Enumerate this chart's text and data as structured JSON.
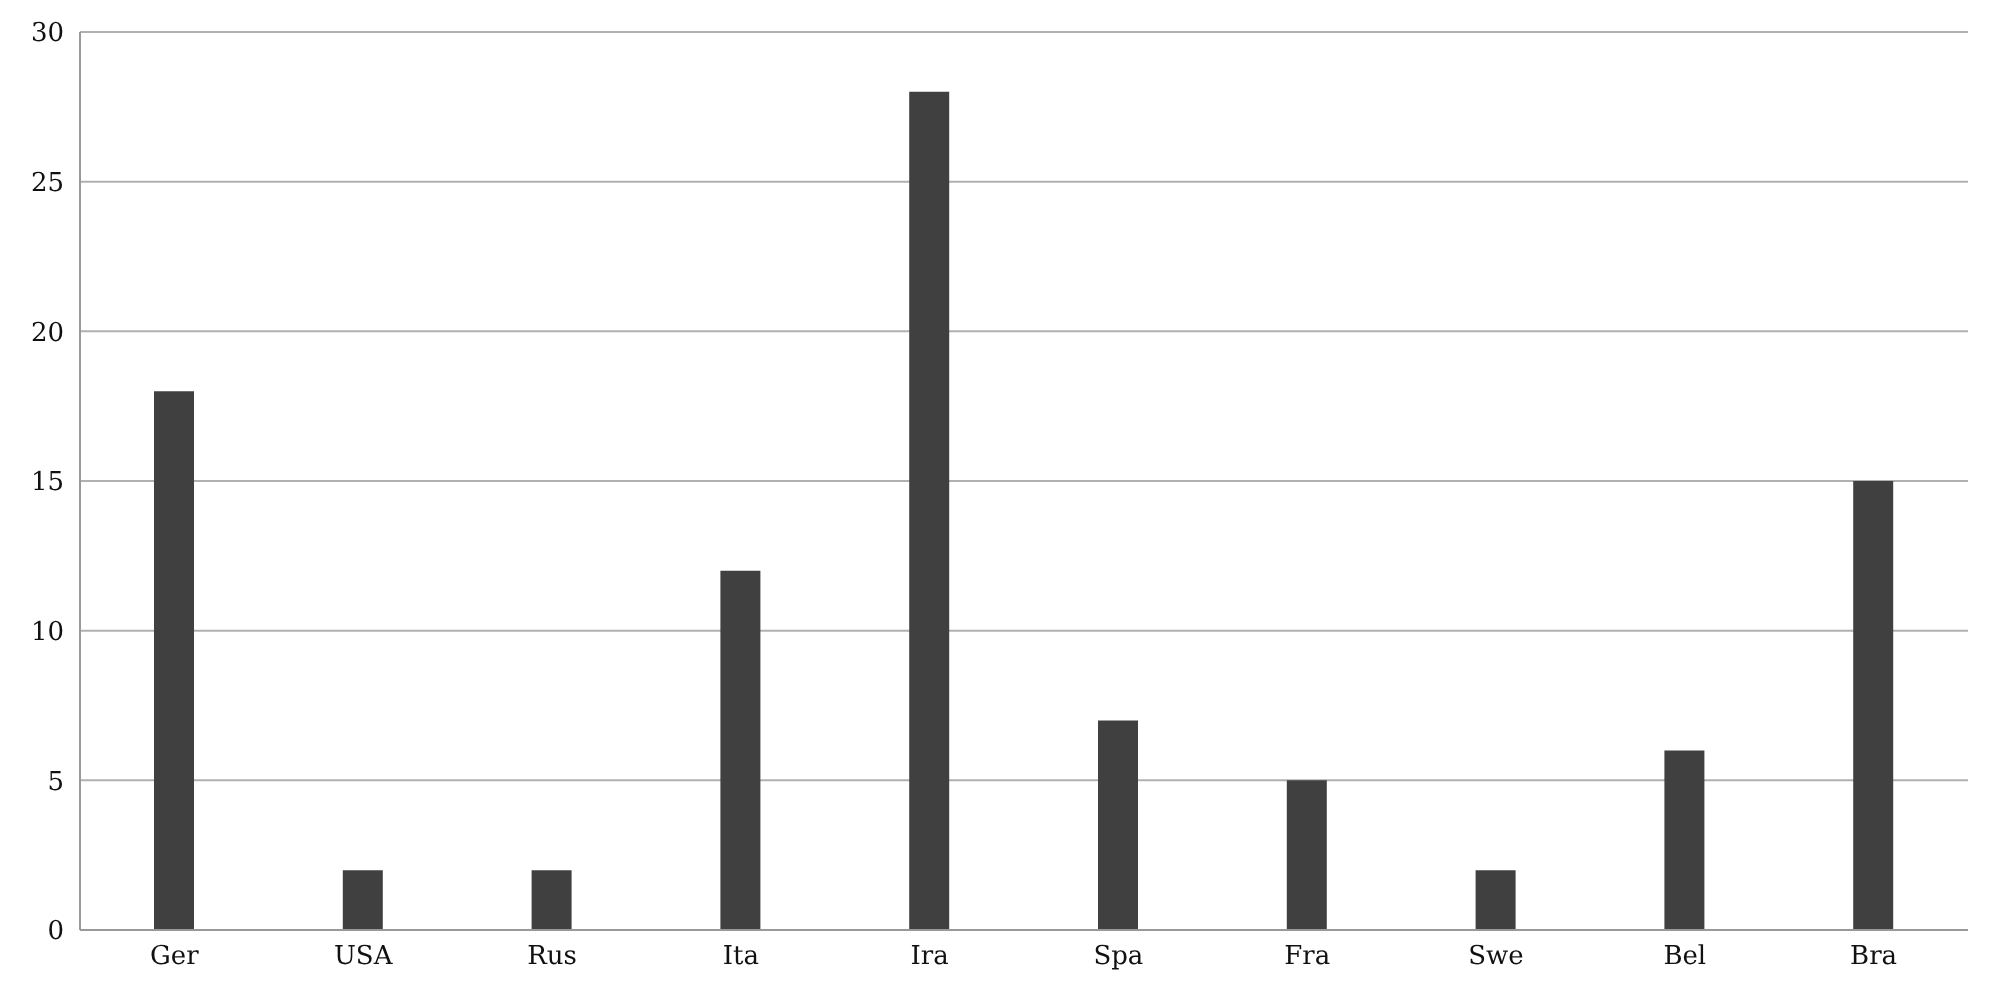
{
  "chart_data": {
    "type": "bar",
    "categories": [
      "Ger",
      "USA",
      "Rus",
      "Ita",
      "Ira",
      "Spa",
      "Fra",
      "Swe",
      "Bel",
      "Bra"
    ],
    "values": [
      18,
      2,
      2,
      12,
      28,
      7,
      5,
      2,
      6,
      15
    ],
    "color": "#404040",
    "ylim": [
      0,
      30
    ],
    "yticks": [
      0,
      5,
      10,
      15,
      20,
      25,
      30
    ],
    "grid": "y"
  }
}
